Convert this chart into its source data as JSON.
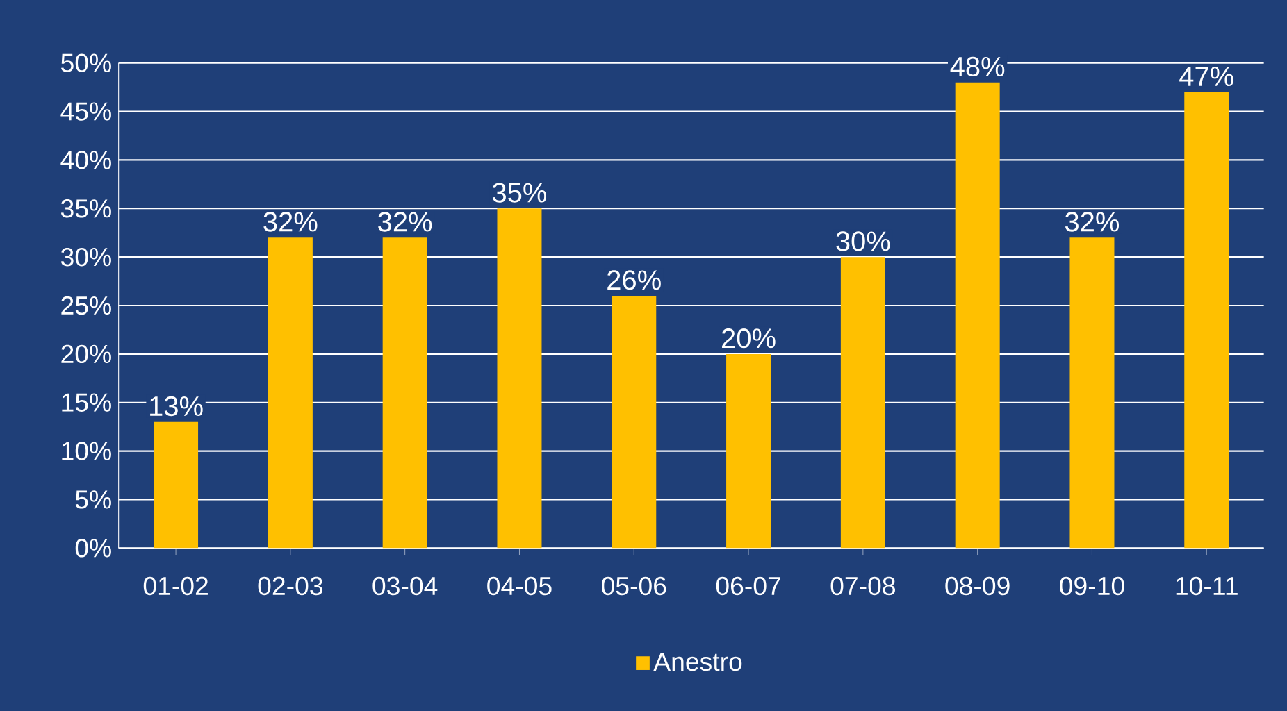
{
  "chart_data": {
    "type": "bar",
    "categories": [
      "01-02",
      "02-03",
      "03-04",
      "04-05",
      "05-06",
      "06-07",
      "07-08",
      "08-09",
      "09-10",
      "10-11"
    ],
    "series": [
      {
        "name": "Anestro",
        "color": "#FFC000",
        "values": [
          13,
          32,
          32,
          35,
          26,
          20,
          30,
          48,
          32,
          47
        ],
        "value_labels": [
          "13%",
          "32%",
          "32%",
          "35%",
          "26%",
          "20%",
          "30%",
          "48%",
          "32%",
          "47%"
        ]
      }
    ],
    "ylim": [
      0,
      50
    ],
    "yticks": [
      {
        "value": 0,
        "label": "0%"
      },
      {
        "value": 5,
        "label": "5%"
      },
      {
        "value": 10,
        "label": "10%"
      },
      {
        "value": 15,
        "label": "15%"
      },
      {
        "value": 20,
        "label": "20%"
      },
      {
        "value": 25,
        "label": "25%"
      },
      {
        "value": 30,
        "label": "30%"
      },
      {
        "value": 35,
        "label": "35%"
      },
      {
        "value": 40,
        "label": "40%"
      },
      {
        "value": 45,
        "label": "45%"
      },
      {
        "value": 50,
        "label": "50%"
      }
    ],
    "grid": "y",
    "legend": "bottom"
  }
}
